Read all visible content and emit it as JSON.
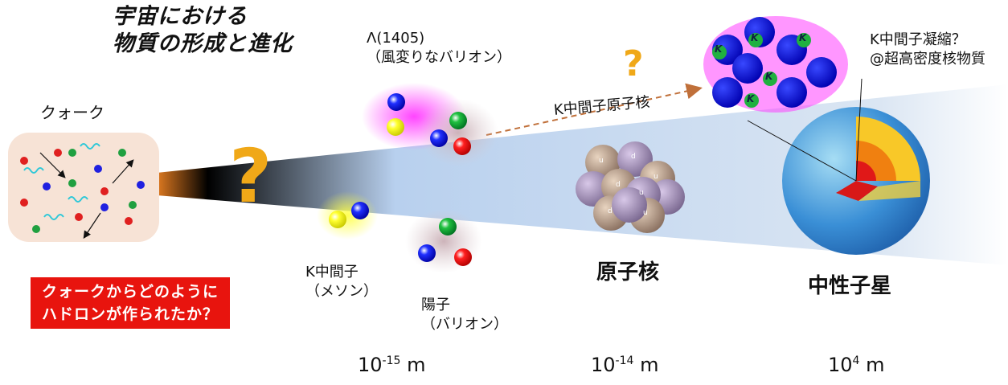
{
  "title": {
    "line1": "宇宙における",
    "line2": "物質の形成と進化"
  },
  "quark": {
    "label": "クォーク"
  },
  "question_main": "?",
  "question_small": "?",
  "lambda": {
    "line1": "Λ(1405)",
    "line2": "（風変りなバリオン）"
  },
  "kaonic_nuclei": "K中間子原子核",
  "kaon_condensation": {
    "line1": "K中間子凝縮？",
    "line2": "@超高密度核物質"
  },
  "kaon": {
    "line1": "K中間子",
    "line2": "（メソン）"
  },
  "proton": {
    "line1": "陽子",
    "line2": "（バリオン）"
  },
  "nucleus": "原子核",
  "neutron_star": "中性子星",
  "warning": {
    "line1": "クォークからどのように",
    "line2": "ハドロンが作られたか？"
  },
  "scales": [
    {
      "base": "10",
      "exp": "-15",
      "unit": "m"
    },
    {
      "base": "10",
      "exp": "-14",
      "unit": "m"
    },
    {
      "base": "10",
      "exp": "4",
      "unit": "m"
    }
  ],
  "nucleon_labels": {
    "u": "u",
    "d": "d"
  },
  "kaon_symbol": "K",
  "colors": {
    "red": "#e8140e",
    "question": "#f0a818",
    "blue": "#0000e0",
    "green": "#1a9a3a",
    "beam": "#c7daf0"
  }
}
